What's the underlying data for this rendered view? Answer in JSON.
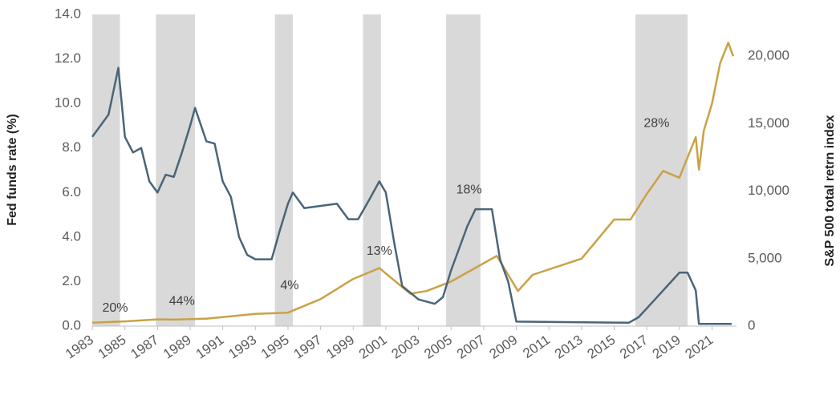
{
  "chart_data": {
    "type": "line",
    "y_label": "Fed funds rate (%)",
    "y2_label": "S&P 500 total retrn index",
    "xlim": [
      1983,
      2022.5
    ],
    "xticks": [
      1983,
      1985,
      1987,
      1989,
      1991,
      1993,
      1995,
      1997,
      1999,
      2001,
      2003,
      2005,
      2007,
      2009,
      2011,
      2013,
      2015,
      2017,
      2019,
      2021
    ],
    "ylim": [
      0,
      14
    ],
    "yticks": [
      {
        "value": 0,
        "label": "0.0"
      },
      {
        "value": 2,
        "label": "2.0"
      },
      {
        "value": 4,
        "label": "4.0"
      },
      {
        "value": 6,
        "label": "6.0"
      },
      {
        "value": 8,
        "label": "8.0"
      },
      {
        "value": 10,
        "label": "10.0"
      },
      {
        "value": 12,
        "label": "12.0"
      },
      {
        "value": 14,
        "label": "14.0"
      }
    ],
    "y2lim": [
      0,
      23100
    ],
    "y2ticks": [
      0,
      {
        "value": 5000,
        "label": "5,000"
      },
      {
        "value": 10000,
        "label": "10,000"
      },
      {
        "value": 15000,
        "label": "15,000"
      },
      {
        "value": 20000,
        "label": "20,000"
      }
    ],
    "shade_color": "#d9d9d9",
    "shaded_ranges": [
      [
        1983,
        1984.7
      ],
      [
        1986.9,
        1989.3
      ],
      [
        1994.2,
        1995.3
      ],
      [
        1999.6,
        2000.7
      ],
      [
        2004.7,
        2006.8
      ],
      [
        2016.3,
        2019.5
      ]
    ],
    "series": [
      {
        "color": "#4a6578",
        "x": [
          1983,
          1983.5,
          1984,
          1984.6,
          1985,
          1985.5,
          1986,
          1986.5,
          1987,
          1987.5,
          1988,
          1988.5,
          1989,
          1989.3,
          1990,
          1990.5,
          1991,
          1991.5,
          1992,
          1992.5,
          1993,
          1994,
          1994.5,
          1995,
          1995.3,
          1996,
          1997,
          1998,
          1998.7,
          1999.3,
          2000,
          2000.6,
          2001,
          2001.5,
          2002,
          2003,
          2004,
          2004.5,
          2005,
          2006,
          2006.5,
          2007.5,
          2008,
          2008.5,
          2009,
          2015.9,
          2016.5,
          2017.5,
          2018.5,
          2019,
          2019.5,
          2020,
          2020.2,
          2022.2
        ],
        "values": [
          8.5,
          9.0,
          9.5,
          11.6,
          8.5,
          7.8,
          8.0,
          6.5,
          6.0,
          6.8,
          6.7,
          7.8,
          9.0,
          9.8,
          8.3,
          8.2,
          6.5,
          5.8,
          4.0,
          3.2,
          3.0,
          3.0,
          4.3,
          5.5,
          6.0,
          5.3,
          5.4,
          5.5,
          4.8,
          4.8,
          5.7,
          6.5,
          6.0,
          3.8,
          1.8,
          1.2,
          1.0,
          1.3,
          2.5,
          4.5,
          5.25,
          5.25,
          3.0,
          2.0,
          0.2,
          0.15,
          0.4,
          1.2,
          2.0,
          2.4,
          2.4,
          1.6,
          0.1,
          0.1
        ]
      },
      {
        "color": "#c9a246",
        "axis": "y2",
        "x": [
          1983,
          1985,
          1987,
          1988,
          1990,
          1993,
          1995,
          1997,
          1999,
          2000.6,
          2002.5,
          2003.5,
          2005,
          2007.8,
          2009.1,
          2010,
          2013,
          2015,
          2016,
          2017,
          2018,
          2019,
          2020,
          2020.2,
          2020.5,
          2021,
          2021.5,
          2022,
          2022.3
        ],
        "values": [
          250,
          350,
          500,
          480,
          550,
          900,
          1000,
          2000,
          3500,
          4300,
          2400,
          2600,
          3300,
          5200,
          2600,
          3800,
          5000,
          7900,
          7900,
          9800,
          11500,
          11000,
          14000,
          11600,
          14500,
          16500,
          19500,
          21000,
          20000
        ]
      }
    ],
    "annotations": [
      {
        "text": "20%",
        "x": 1984.4,
        "y": 0.8
      },
      {
        "text": "44%",
        "x": 1988.5,
        "y": 1.1
      },
      {
        "text": "4%",
        "x": 1995.1,
        "y": 1.8
      },
      {
        "text": "13%",
        "x": 2000.6,
        "y": 3.35
      },
      {
        "text": "18%",
        "x": 2006.1,
        "y": 6.1
      },
      {
        "text": "28%",
        "x": 2017.6,
        "y": 9.1
      }
    ]
  }
}
